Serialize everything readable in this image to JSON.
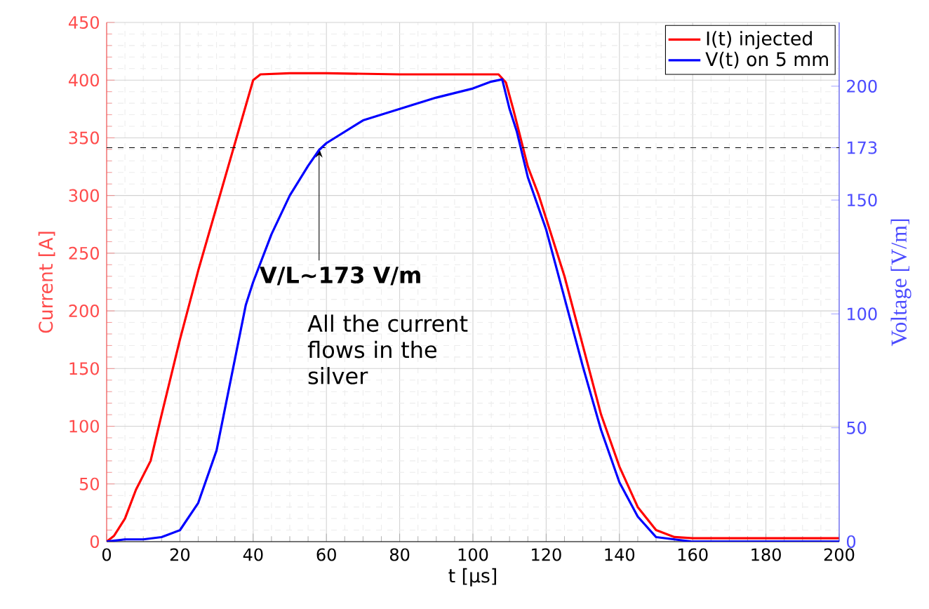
{
  "chart_data": {
    "type": "line",
    "xlabel": "t [μs]",
    "ylabel": "Current [A]",
    "y2label": "Voltage [V/m]",
    "x": [
      0,
      2,
      5,
      8,
      12,
      15,
      20,
      25,
      30,
      35,
      40,
      42,
      50,
      60,
      80,
      100,
      107,
      109,
      111,
      113,
      115,
      118,
      120,
      125,
      130,
      135,
      140,
      145,
      150,
      155,
      160,
      180,
      200
    ],
    "series": [
      {
        "name": "I(t) injected",
        "color": "#ff0000",
        "values": [
          0,
          5,
          20,
          45,
          70,
          110,
          175,
          235,
          290,
          345,
          400,
          405,
          406,
          406,
          405,
          405,
          405,
          398,
          375,
          350,
          325,
          300,
          280,
          230,
          170,
          110,
          65,
          30,
          10,
          4,
          3,
          3,
          3
        ]
      },
      {
        "name": "V(t) on 5 mm",
        "color": "#0000ff",
        "axis": "y2",
        "x": [
          0,
          5,
          10,
          15,
          20,
          25,
          30,
          35,
          38,
          40,
          45,
          50,
          55,
          58,
          60,
          70,
          80,
          90,
          100,
          105,
          108,
          110,
          112,
          115,
          120,
          125,
          130,
          135,
          140,
          145,
          150,
          155,
          160,
          200
        ],
        "values": [
          0,
          1,
          1,
          2,
          5,
          17,
          40,
          80,
          104,
          114,
          135,
          152,
          165,
          172,
          175,
          185,
          190,
          195,
          199,
          202,
          203,
          190,
          180,
          160,
          137,
          107,
          77,
          49,
          26,
          11,
          2,
          1,
          0,
          0
        ]
      }
    ],
    "xlim": [
      0,
      200
    ],
    "xticks": [
      0,
      20,
      40,
      60,
      80,
      100,
      120,
      140,
      160,
      180,
      200
    ],
    "ylim": [
      0,
      450
    ],
    "yticks": [
      0,
      50,
      100,
      150,
      200,
      250,
      300,
      350,
      400,
      450
    ],
    "y2lim": [
      0,
      228
    ],
    "y2ticks": [
      0,
      50,
      100,
      150,
      173,
      200
    ],
    "ref_lines": [
      {
        "axis": "y2",
        "value": 173,
        "color": "#000000",
        "line_style": "dashed"
      }
    ],
    "annotations": [
      {
        "text": "V/L∼173 V/m",
        "x": 58,
        "y": 341
      },
      "All the current flows in the silver"
    ],
    "grid": true,
    "legend": "top right"
  }
}
